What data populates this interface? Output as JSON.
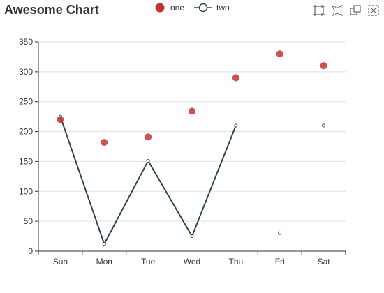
{
  "chart_data": {
    "type": "line",
    "title": "Awesome Chart",
    "categories": [
      "Sun",
      "Mon",
      "Tue",
      "Wed",
      "Thu",
      "Fri",
      "Sat"
    ],
    "ylim": [
      0,
      350
    ],
    "yticks": [
      0,
      50,
      100,
      150,
      200,
      250,
      300,
      350
    ],
    "grid": true,
    "legend_position": "top-center",
    "series": [
      {
        "name": "one",
        "type": "scatter",
        "color": "#c23531",
        "values": [
          220,
          182,
          191,
          234,
          290,
          330,
          310
        ]
      },
      {
        "name": "two",
        "type": "line",
        "color": "#2f4554",
        "values": [
          225,
          12,
          151,
          25,
          210,
          30,
          210
        ],
        "connected_segments": [
          [
            0,
            4
          ]
        ]
      }
    ]
  },
  "toolbox": {
    "icons": [
      "zoom-icon",
      "lasso-icon",
      "restore-icon",
      "close-icon"
    ]
  }
}
